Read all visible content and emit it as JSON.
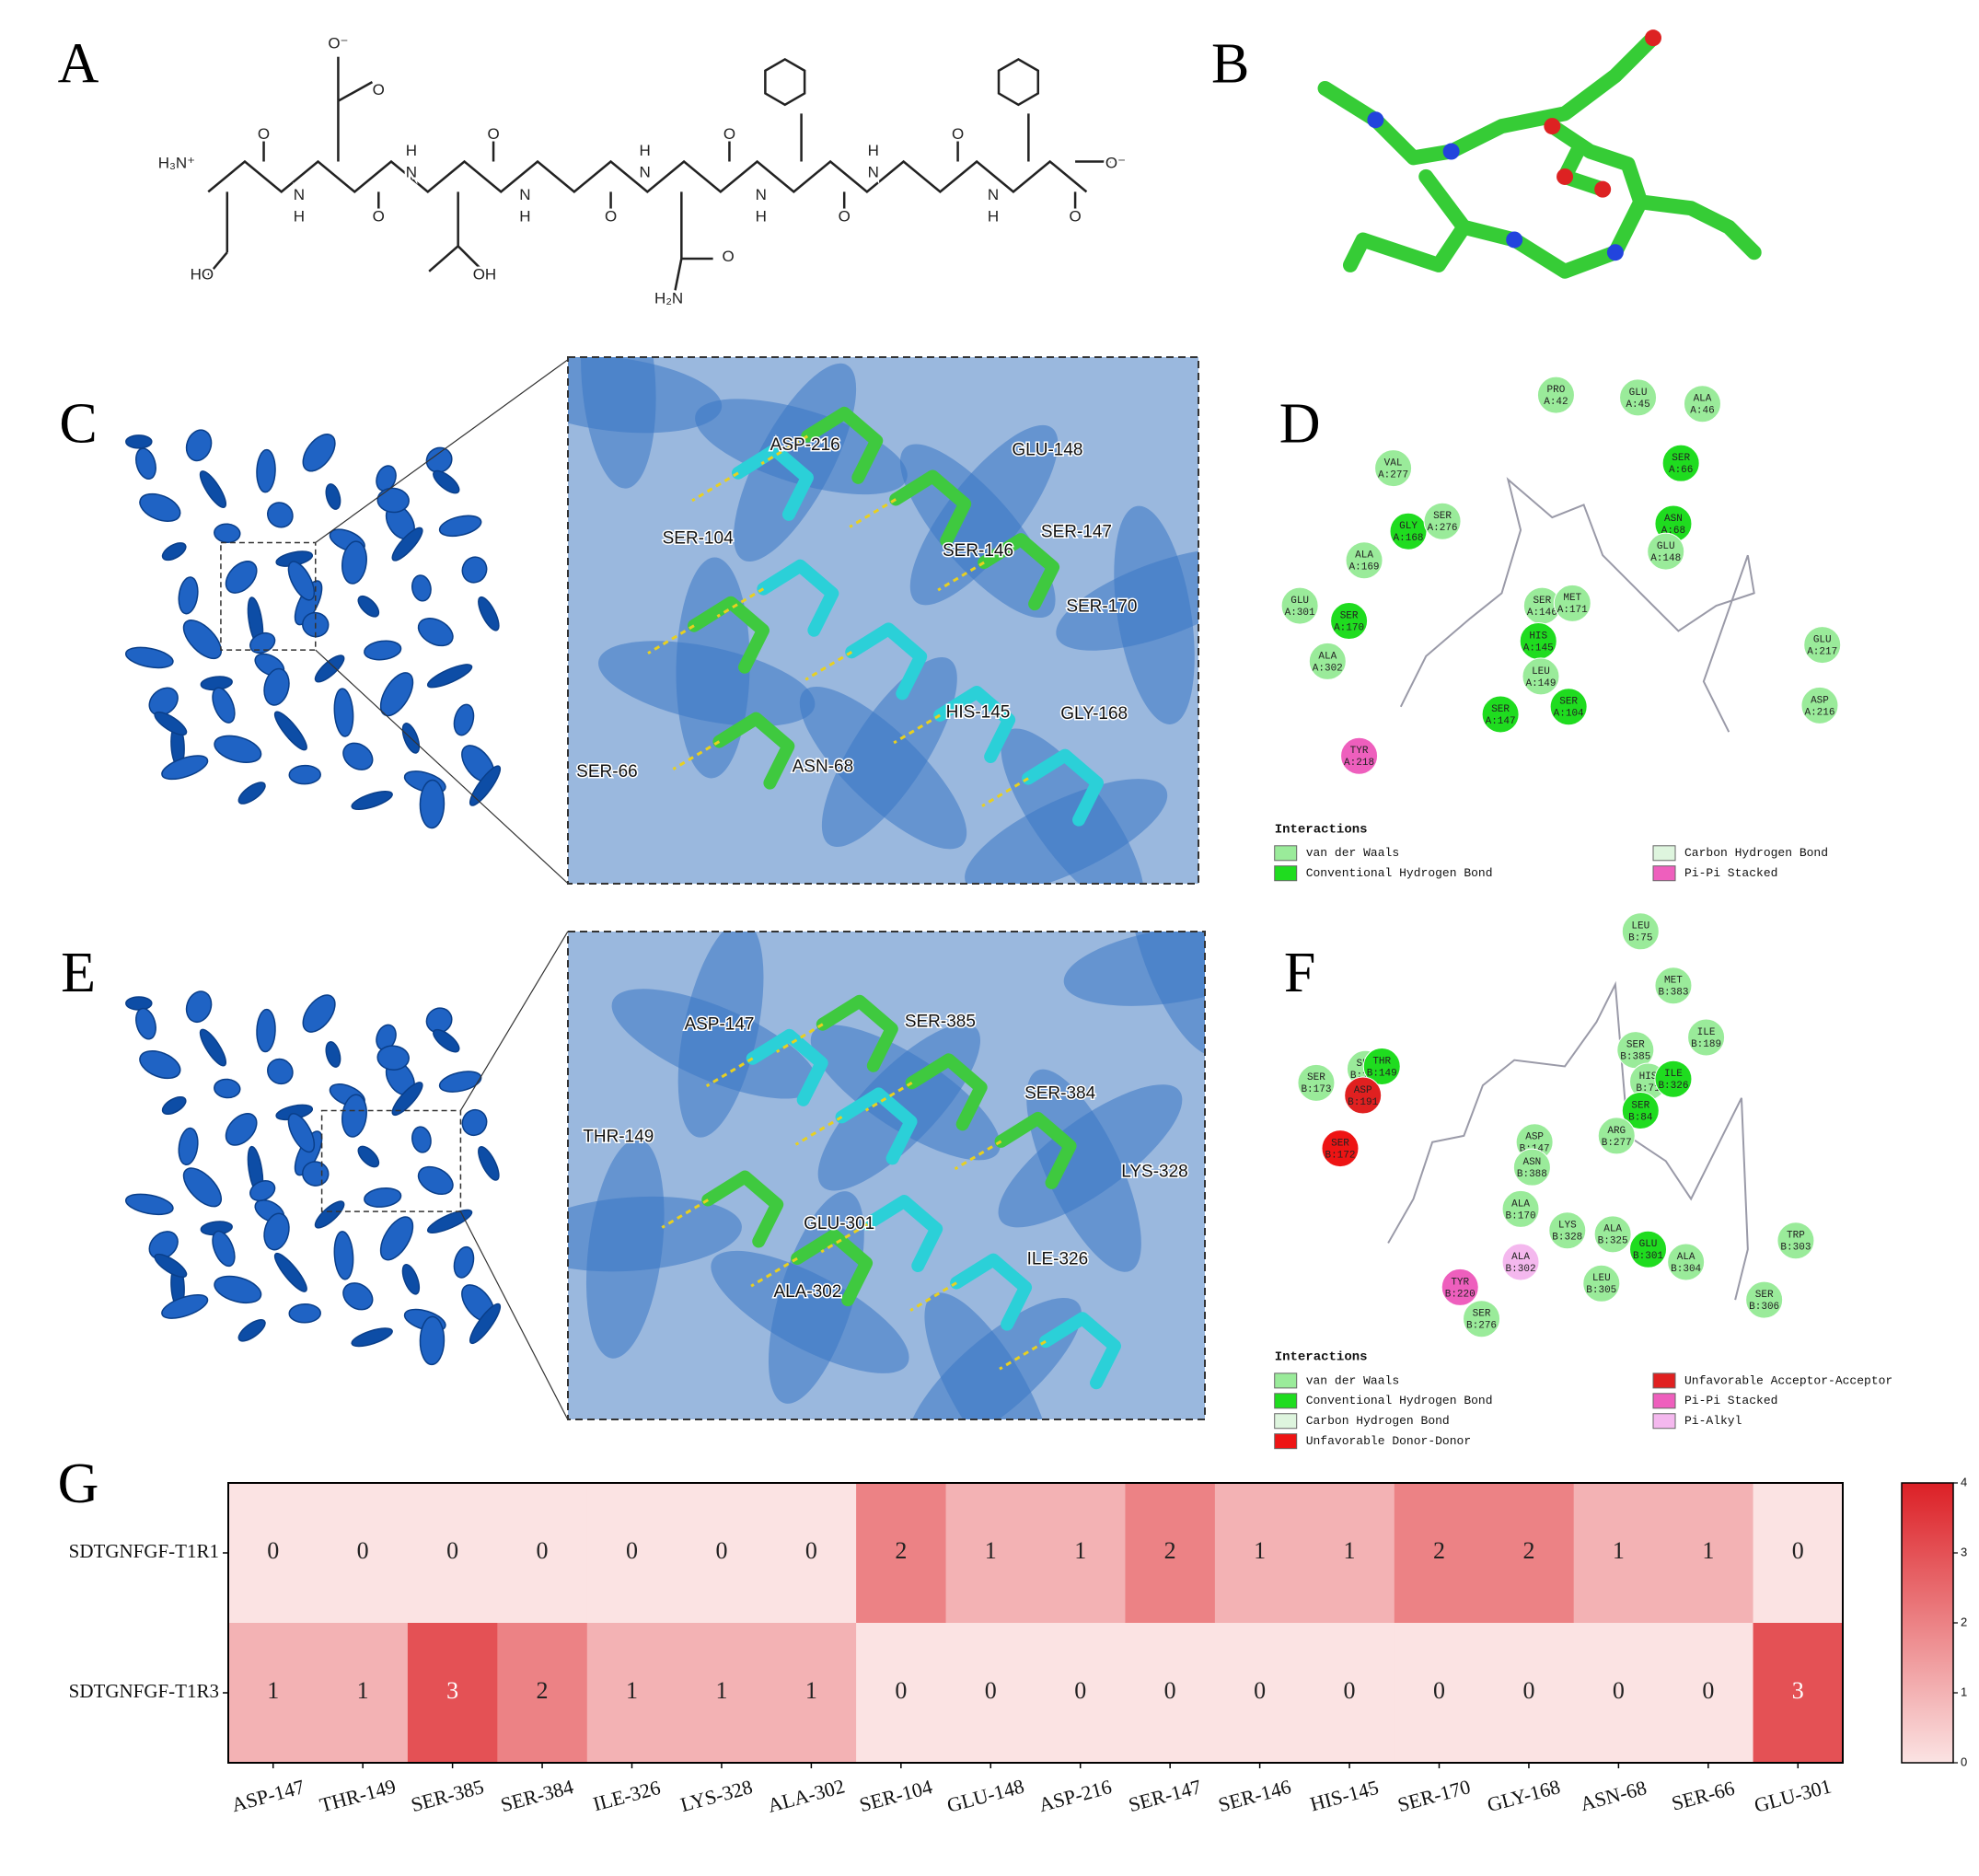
{
  "panels": {
    "labels": [
      "A",
      "B",
      "C",
      "D",
      "E",
      "F",
      "G"
    ]
  },
  "structure_a": {
    "atoms": [
      "H₃N⁺",
      "HO",
      "O",
      "N",
      "H",
      "O⁻",
      "O",
      "O",
      "N",
      "H",
      "O",
      "OH",
      "N",
      "H",
      "O",
      "N",
      "H",
      "O",
      "H₂N",
      "O",
      "N",
      "H",
      "O",
      "N",
      "H",
      "O",
      "N",
      "H",
      "O",
      "O⁻"
    ]
  },
  "panel_c": {
    "residues": [
      "ASP-216",
      "GLU-148",
      "SER-104",
      "SER-147",
      "SER-146",
      "SER-170",
      "HIS-145",
      "GLY-168",
      "SER-66",
      "ASN-68"
    ]
  },
  "panel_e": {
    "residues": [
      "ASP-147",
      "SER-385",
      "SER-384",
      "THR-149",
      "LYS-328",
      "GLU-301",
      "ILE-326",
      "ALA-302"
    ]
  },
  "panel_d": {
    "nodes": [
      {
        "name": "PRO",
        "id": "A:42",
        "kind": "van der Waals"
      },
      {
        "name": "GLU",
        "id": "A:45",
        "kind": "van der Waals"
      },
      {
        "name": "ALA",
        "id": "A:46",
        "kind": "van der Waals"
      },
      {
        "name": "VAL",
        "id": "A:277",
        "kind": "van der Waals"
      },
      {
        "name": "SER",
        "id": "A:66",
        "kind": "Conventional Hydrogen Bond"
      },
      {
        "name": "GLY",
        "id": "A:168",
        "kind": "Conventional Hydrogen Bond"
      },
      {
        "name": "SER",
        "id": "A:276",
        "kind": "van der Waals"
      },
      {
        "name": "ASN",
        "id": "A:68",
        "kind": "Conventional Hydrogen Bond"
      },
      {
        "name": "GLU",
        "id": "A:148",
        "kind": "van der Waals"
      },
      {
        "name": "ALA",
        "id": "A:169",
        "kind": "van der Waals"
      },
      {
        "name": "GLU",
        "id": "A:301",
        "kind": "van der Waals"
      },
      {
        "name": "SER",
        "id": "A:170",
        "kind": "Conventional Hydrogen Bond"
      },
      {
        "name": "SER",
        "id": "A:146",
        "kind": "van der Waals"
      },
      {
        "name": "MET",
        "id": "A:171",
        "kind": "van der Waals"
      },
      {
        "name": "HIS",
        "id": "A:145",
        "kind": "Conventional Hydrogen Bond"
      },
      {
        "name": "ALA",
        "id": "A:302",
        "kind": "van der Waals"
      },
      {
        "name": "LEU",
        "id": "A:149",
        "kind": "van der Waals"
      },
      {
        "name": "SER",
        "id": "A:104",
        "kind": "Conventional Hydrogen Bond"
      },
      {
        "name": "SER",
        "id": "A:147",
        "kind": "Conventional Hydrogen Bond"
      },
      {
        "name": "GLU",
        "id": "A:217",
        "kind": "van der Waals"
      },
      {
        "name": "ASP",
        "id": "A:216",
        "kind": "van der Waals"
      },
      {
        "name": "TYR",
        "id": "A:218",
        "kind": "Pi-Pi Stacked"
      }
    ],
    "legend_title": "Interactions",
    "legend": [
      {
        "label": "van der Waals",
        "color": "#9aeb9a"
      },
      {
        "label": "Conventional Hydrogen Bond",
        "color": "#1fdc1f"
      },
      {
        "label": "Carbon Hydrogen Bond",
        "color": "#def5de"
      },
      {
        "label": "Pi-Pi Stacked",
        "color": "#ee5fbd"
      }
    ]
  },
  "panel_f": {
    "nodes": [
      {
        "name": "LEU",
        "id": "B:75",
        "kind": "van der Waals"
      },
      {
        "name": "MET",
        "id": "B:383",
        "kind": "van der Waals"
      },
      {
        "name": "SER",
        "id": "B:148",
        "kind": "van der Waals"
      },
      {
        "name": "SER",
        "id": "B:385",
        "kind": "van der Waals"
      },
      {
        "name": "HIS",
        "id": "B:71",
        "kind": "van der Waals"
      },
      {
        "name": "ILE",
        "id": "B:326",
        "kind": "Conventional Hydrogen Bond"
      },
      {
        "name": "ILE",
        "id": "B:189",
        "kind": "van der Waals"
      },
      {
        "name": "THR",
        "id": "B:149",
        "kind": "Conventional Hydrogen Bond"
      },
      {
        "name": "SER",
        "id": "B:173",
        "kind": "van der Waals"
      },
      {
        "name": "ASP",
        "id": "B:191",
        "kind": "Unfavorable Acceptor-Acceptor"
      },
      {
        "name": "SER",
        "id": "B:84",
        "kind": "Conventional Hydrogen Bond"
      },
      {
        "name": "ARG",
        "id": "B:277",
        "kind": "van der Waals"
      },
      {
        "name": "SER",
        "id": "B:172",
        "kind": "Unfavorable Donor-Donor"
      },
      {
        "name": "ASP",
        "id": "B:147",
        "kind": "van der Waals"
      },
      {
        "name": "ASN",
        "id": "B:388",
        "kind": "van der Waals"
      },
      {
        "name": "ALA",
        "id": "B:170",
        "kind": "van der Waals"
      },
      {
        "name": "LYS",
        "id": "B:328",
        "kind": "van der Waals"
      },
      {
        "name": "ALA",
        "id": "B:325",
        "kind": "van der Waals"
      },
      {
        "name": "GLU",
        "id": "B:301",
        "kind": "Conventional Hydrogen Bond"
      },
      {
        "name": "ALA",
        "id": "B:304",
        "kind": "van der Waals"
      },
      {
        "name": "TRP",
        "id": "B:303",
        "kind": "van der Waals"
      },
      {
        "name": "ALA",
        "id": "B:302",
        "kind": "Pi-Alkyl"
      },
      {
        "name": "TYR",
        "id": "B:220",
        "kind": "Pi-Pi Stacked"
      },
      {
        "name": "LEU",
        "id": "B:305",
        "kind": "van der Waals"
      },
      {
        "name": "SER",
        "id": "B:306",
        "kind": "van der Waals"
      },
      {
        "name": "SER",
        "id": "B:276",
        "kind": "van der Waals"
      }
    ],
    "legend_title": "Interactions",
    "legend": [
      {
        "label": "van der Waals",
        "color": "#9aeb9a"
      },
      {
        "label": "Conventional Hydrogen Bond",
        "color": "#1fdc1f"
      },
      {
        "label": "Carbon Hydrogen Bond",
        "color": "#def5de"
      },
      {
        "label": "Unfavorable Donor-Donor",
        "color": "#ee1414"
      },
      {
        "label": "Unfavorable Acceptor-Acceptor",
        "color": "#e02020"
      },
      {
        "label": "Pi-Pi Stacked",
        "color": "#ee5fbd"
      },
      {
        "label": "Pi-Alkyl",
        "color": "#f4b8ee"
      }
    ]
  },
  "chart_data": {
    "type": "heatmap",
    "categories": [
      "ASP-147",
      "THR-149",
      "SER-385",
      "SER-384",
      "ILE-326",
      "LYS-328",
      "ALA-302",
      "SER-104",
      "GLU-148",
      "ASP-216",
      "SER-147",
      "SER-146",
      "HIS-145",
      "SER-170",
      "GLY-168",
      "ASN-68",
      "SER-66",
      "GLU-301"
    ],
    "rows": [
      "SDTGNFGF-T1R1",
      "SDTGNFGF-T1R3"
    ],
    "values": [
      [
        0,
        0,
        0,
        0,
        0,
        0,
        0,
        2,
        1,
        1,
        2,
        1,
        1,
        2,
        2,
        1,
        1,
        0
      ],
      [
        1,
        1,
        3,
        2,
        1,
        1,
        1,
        0,
        0,
        0,
        0,
        0,
        0,
        0,
        0,
        0,
        0,
        3
      ]
    ],
    "clim": [
      0,
      4
    ],
    "cticks": [
      0,
      1,
      2,
      3,
      4
    ],
    "colormap": [
      "#fbe3e3",
      "#dc2026"
    ]
  }
}
